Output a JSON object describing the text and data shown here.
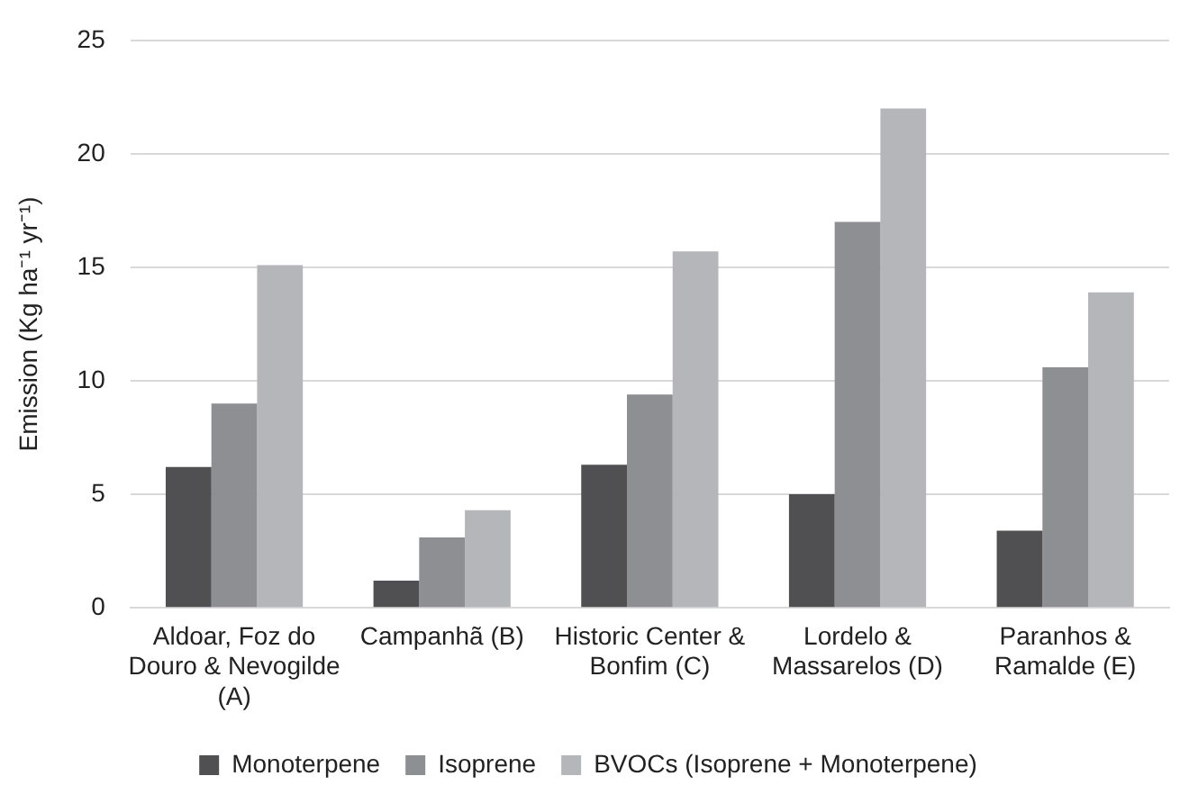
{
  "chart_data": {
    "type": "bar",
    "ylabel": "Emission (Kg ha⁻¹ yr⁻¹)",
    "categories": [
      "Aldoar, Foz do Douro & Nevogilde (A)",
      "Campanhã (B)",
      "Historic Center & Bonfim (C)",
      "Lordelo & Massarelos (D)",
      "Paranhos & Ramalde (E)"
    ],
    "series": [
      {
        "name": "Monoterpene",
        "color": "#505052",
        "values": [
          6.2,
          1.2,
          6.3,
          5.0,
          3.4
        ]
      },
      {
        "name": "Isoprene",
        "color": "#8e8f93",
        "values": [
          9.0,
          3.1,
          9.4,
          17.0,
          10.6
        ]
      },
      {
        "name": "BVOCs (Isoprene + Monoterpene)",
        "color": "#b5b6b9",
        "values": [
          15.1,
          4.3,
          15.7,
          22.0,
          13.9
        ]
      }
    ],
    "ylim": [
      0,
      25
    ],
    "yticks": [
      0,
      5,
      10,
      15,
      20,
      25
    ],
    "grid": "y",
    "legend": "bottom"
  }
}
